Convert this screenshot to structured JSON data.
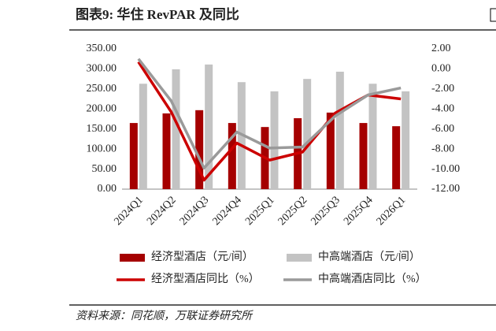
{
  "chart_data": {
    "type": "bar",
    "title": "图表9:  华住 RevPAR 及同比",
    "source": "资料来源：同花顺，万联证券研究所",
    "categories": [
      "2024Q1",
      "2024Q2",
      "2024Q3",
      "2024Q4",
      "2025Q1",
      "2025Q2",
      "2025Q3",
      "2025Q4",
      "2026Q1"
    ],
    "series": [
      {
        "name": "经济型酒店（元/间）",
        "type": "bar",
        "color": "#a50000",
        "values": [
          165,
          189,
          197,
          165,
          155,
          177,
          191,
          165,
          157
        ]
      },
      {
        "name": "中高端酒店（元/间）",
        "type": "bar",
        "color": "#c3c3c3",
        "values": [
          263,
          299,
          311,
          267,
          244,
          275,
          293,
          263,
          244
        ]
      },
      {
        "name": "经济型酒店同比（%）",
        "type": "line",
        "axis": "y2",
        "color": "#cc0000",
        "values": [
          0.7,
          -4.3,
          -11.1,
          -7.4,
          -9.1,
          -8.3,
          -4.4,
          -2.6,
          -3.0
        ]
      },
      {
        "name": "中高端酒店同比（%）",
        "type": "line",
        "axis": "y2",
        "color": "#9a9a9a",
        "values": [
          1.0,
          -3.2,
          -9.9,
          -6.3,
          -7.9,
          -7.8,
          -4.7,
          -2.6,
          -1.9
        ]
      }
    ],
    "ylim": [
      0,
      350
    ],
    "yticks": [
      {
        "value": 0,
        "label": "0.00"
      },
      {
        "value": 50,
        "label": "50.00"
      },
      {
        "value": 100,
        "label": "100.00"
      },
      {
        "value": 150,
        "label": "150.00"
      },
      {
        "value": 200,
        "label": "200.00"
      },
      {
        "value": 250,
        "label": "250.00"
      },
      {
        "value": 300,
        "label": "300.00"
      },
      {
        "value": 350,
        "label": "350.00"
      }
    ],
    "y2lim": [
      -12,
      2
    ],
    "y2ticks": [
      {
        "value": -12,
        "label": "-12.00"
      },
      {
        "value": -10,
        "label": "-10.00"
      },
      {
        "value": -8,
        "label": "-8.00"
      },
      {
        "value": -6,
        "label": "-6.00"
      },
      {
        "value": -4,
        "label": "-4.00"
      },
      {
        "value": -2,
        "label": "-2.00"
      },
      {
        "value": 0,
        "label": "0.00"
      },
      {
        "value": 2,
        "label": "2.00"
      }
    ]
  }
}
